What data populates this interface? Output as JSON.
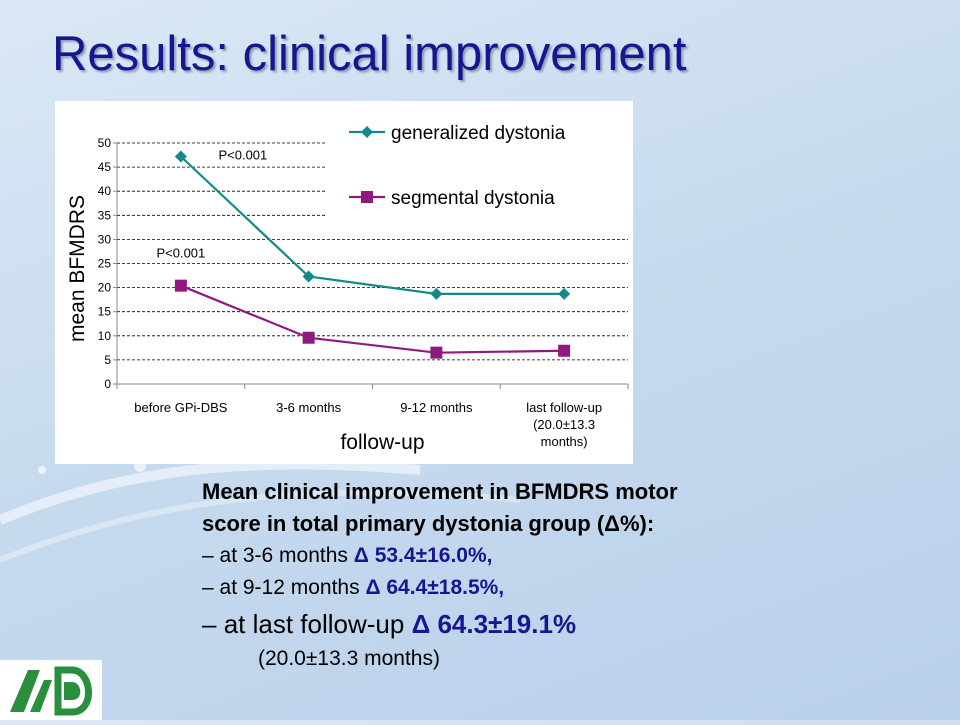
{
  "title": "Results: clinical improvement",
  "colors": {
    "title": "#16168f",
    "generalized": "#138a8a",
    "segmental": "#8e1a7e",
    "value_text": "#16168f"
  },
  "chart_data": {
    "type": "line",
    "categories": [
      "before GPi-DBS",
      "3-6 months",
      "9-12 months",
      "last follow-up\n(20.0±13.3\nmonths)"
    ],
    "series": [
      {
        "name": "generalized dystonia",
        "values": [
          47.2,
          22.3,
          18.7,
          18.7
        ],
        "marker": "diamond"
      },
      {
        "name": "segmental dystonia",
        "values": [
          20.4,
          9.6,
          6.5,
          6.9
        ],
        "marker": "square"
      }
    ],
    "xlabel": "follow-up",
    "ylabel": "mean BFMDRS",
    "ylim": [
      0,
      50
    ],
    "yticks": [
      0,
      5,
      10,
      15,
      20,
      25,
      30,
      35,
      40,
      45,
      50
    ],
    "grid": true,
    "legend": "top-right",
    "annotations": [
      {
        "text": "P<0.001",
        "series": 0,
        "category": 0
      },
      {
        "text": "P<0.001",
        "series": 1,
        "category": 0
      }
    ]
  },
  "description": {
    "heading_line1": "Mean clinical improvement in BFMDRS motor",
    "heading_line2": "score in total primary dystonia group (Δ%):",
    "rows": [
      {
        "dash": "–",
        "label": " at 3-6 months ",
        "value": "Δ 53.4±16.0%,"
      },
      {
        "dash": "–",
        "label": " at 9-12 months ",
        "value": "Δ 64.4±18.5%,"
      },
      {
        "dash": "–",
        "label": "  at last follow-up ",
        "value": "Δ 64.3±19.1%"
      }
    ],
    "last_note": "(20.0±13.3 months)"
  }
}
